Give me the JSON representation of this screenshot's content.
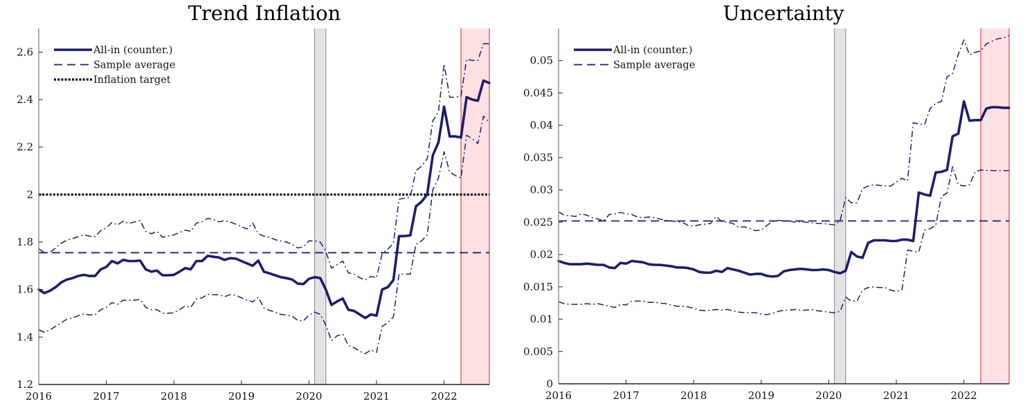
{
  "chart_data": [
    {
      "type": "line",
      "title": "Trend Inflation",
      "xlabel": "",
      "ylabel": "",
      "x_start": "2016-01",
      "frequency": "monthly",
      "xlim": [
        2016.0,
        2022.67
      ],
      "ylim": [
        1.2,
        2.7
      ],
      "x_ticks": [
        "2016",
        "2017",
        "2018",
        "2019",
        "2020",
        "2021",
        "2022"
      ],
      "y_ticks": [
        "1.2",
        "1.4",
        "1.6",
        "1.8",
        "2",
        "2.2",
        "2.4",
        "2.6"
      ],
      "y_tick_values": [
        1.2,
        1.4,
        1.6,
        1.8,
        2.0,
        2.2,
        2.4,
        2.6
      ],
      "grid": false,
      "legend_position": "top-left",
      "legend": [
        {
          "label": "All-in (counter.)",
          "style": "solid"
        },
        {
          "label": "Sample average",
          "style": "dashed"
        },
        {
          "label": "Inflation target",
          "style": "dotted"
        }
      ],
      "shaded_regions": [
        {
          "name": "covid",
          "from": 2020.083,
          "to": 2020.25,
          "color": "#e3e3e3",
          "edge": "#9a9a9a"
        },
        {
          "name": "forecast",
          "from": 2022.25,
          "to": 2022.67,
          "color": "#ffe1e4",
          "edge": "#e0505a"
        }
      ],
      "hlines": [
        {
          "name": "Sample average",
          "value": 1.755,
          "style": "dashed",
          "color": "#1c1c6e"
        },
        {
          "name": "Inflation target",
          "value": 2.0,
          "style": "dotted",
          "color": "#000000"
        }
      ],
      "series": [
        {
          "name": "All-in (counter.)",
          "style": "solid",
          "color": "#1c1c6e",
          "values": [
            1.6,
            1.585,
            1.595,
            1.61,
            1.63,
            1.642,
            1.648,
            1.657,
            1.662,
            1.657,
            1.657,
            1.685,
            1.695,
            1.72,
            1.71,
            1.725,
            1.72,
            1.72,
            1.722,
            1.685,
            1.675,
            1.68,
            1.66,
            1.66,
            1.662,
            1.675,
            1.69,
            1.685,
            1.72,
            1.72,
            1.742,
            1.738,
            1.735,
            1.725,
            1.732,
            1.73,
            1.72,
            1.71,
            1.7,
            1.722,
            1.675,
            1.668,
            1.66,
            1.652,
            1.648,
            1.642,
            1.625,
            1.623,
            1.645,
            1.652,
            1.648,
            1.6,
            1.535,
            1.55,
            1.562,
            1.515,
            1.51,
            1.495,
            1.48,
            1.495,
            1.49,
            1.6,
            1.61,
            1.64,
            1.825,
            1.825,
            1.828,
            1.95,
            1.97,
            2.0,
            2.165,
            2.22,
            2.37,
            2.245,
            2.245,
            2.24,
            2.41,
            2.4,
            2.395,
            2.48,
            2.47
          ]
        },
        {
          "name": "Upper band",
          "style": "dashdot",
          "color": "#1c1c6e",
          "values": [
            1.772,
            1.755,
            1.757,
            1.775,
            1.795,
            1.808,
            1.815,
            1.822,
            1.83,
            1.825,
            1.822,
            1.848,
            1.86,
            1.882,
            1.872,
            1.888,
            1.878,
            1.885,
            1.89,
            1.845,
            1.835,
            1.845,
            1.82,
            1.825,
            1.83,
            1.84,
            1.85,
            1.845,
            1.88,
            1.885,
            1.9,
            1.895,
            1.885,
            1.89,
            1.885,
            1.875,
            1.865,
            1.855,
            1.88,
            1.835,
            1.825,
            1.82,
            1.81,
            1.805,
            1.8,
            1.79,
            1.775,
            1.78,
            1.805,
            1.805,
            1.8,
            1.76,
            1.69,
            1.705,
            1.72,
            1.67,
            1.665,
            1.65,
            1.64,
            1.655,
            1.65,
            1.75,
            1.77,
            1.795,
            1.98,
            1.985,
            1.99,
            2.1,
            2.12,
            2.15,
            2.31,
            2.35,
            2.55,
            2.41,
            2.41,
            2.415,
            2.57,
            2.565,
            2.565,
            2.635,
            2.635
          ]
        },
        {
          "name": "Lower band",
          "style": "dashdot",
          "color": "#1c1c6e",
          "values": [
            1.43,
            1.42,
            1.43,
            1.445,
            1.46,
            1.475,
            1.48,
            1.49,
            1.497,
            1.493,
            1.493,
            1.515,
            1.525,
            1.545,
            1.538,
            1.555,
            1.555,
            1.555,
            1.558,
            1.525,
            1.515,
            1.515,
            1.5,
            1.5,
            1.502,
            1.515,
            1.53,
            1.525,
            1.56,
            1.565,
            1.58,
            1.578,
            1.578,
            1.57,
            1.578,
            1.576,
            1.565,
            1.555,
            1.548,
            1.568,
            1.522,
            1.512,
            1.505,
            1.495,
            1.492,
            1.488,
            1.47,
            1.468,
            1.492,
            1.505,
            1.495,
            1.45,
            1.385,
            1.405,
            1.412,
            1.365,
            1.355,
            1.34,
            1.33,
            1.345,
            1.335,
            1.445,
            1.46,
            1.485,
            1.665,
            1.665,
            1.665,
            1.79,
            1.805,
            1.83,
            2.02,
            2.07,
            2.18,
            2.095,
            2.08,
            2.07,
            2.25,
            2.235,
            2.215,
            2.33,
            2.305
          ]
        }
      ]
    },
    {
      "type": "line",
      "title": "Uncertainty",
      "xlabel": "",
      "ylabel": "",
      "x_start": "2016-01",
      "frequency": "monthly",
      "xlim": [
        2016.0,
        2022.67
      ],
      "ylim": [
        0,
        0.055
      ],
      "x_ticks": [
        "2016",
        "2017",
        "2018",
        "2019",
        "2020",
        "2021",
        "2022"
      ],
      "y_ticks": [
        "0",
        "0.005",
        "0.01",
        "0.015",
        "0.02",
        "0.025",
        "0.03",
        "0.035",
        "0.04",
        "0.045",
        "0.05"
      ],
      "y_tick_values": [
        0,
        0.005,
        0.01,
        0.015,
        0.02,
        0.025,
        0.03,
        0.035,
        0.04,
        0.045,
        0.05
      ],
      "grid": false,
      "legend_position": "top-left",
      "legend": [
        {
          "label": "All-in (counter.)",
          "style": "solid"
        },
        {
          "label": "Sample average",
          "style": "dashed"
        }
      ],
      "shaded_regions": [
        {
          "name": "covid",
          "from": 2020.083,
          "to": 2020.25,
          "color": "#e3e3e3",
          "edge": "#9a9a9a"
        },
        {
          "name": "forecast",
          "from": 2022.25,
          "to": 2022.67,
          "color": "#ffe1e4",
          "edge": "#e0505a"
        }
      ],
      "hlines": [
        {
          "name": "Sample average",
          "value": 0.0252,
          "style": "dashed",
          "color": "#1c1c6e"
        }
      ],
      "series": [
        {
          "name": "All-in (counter.)",
          "style": "solid",
          "color": "#1c1c6e",
          "values": [
            0.019,
            0.0187,
            0.0185,
            0.0185,
            0.0185,
            0.0186,
            0.0185,
            0.0184,
            0.0184,
            0.018,
            0.0179,
            0.0187,
            0.0186,
            0.019,
            0.0189,
            0.0188,
            0.0185,
            0.0184,
            0.0184,
            0.0183,
            0.0182,
            0.018,
            0.018,
            0.0179,
            0.0177,
            0.0173,
            0.0172,
            0.0172,
            0.0175,
            0.0173,
            0.0179,
            0.0177,
            0.0175,
            0.0172,
            0.0169,
            0.017,
            0.017,
            0.0167,
            0.0166,
            0.0167,
            0.0174,
            0.0176,
            0.0177,
            0.0178,
            0.0177,
            0.0176,
            0.0176,
            0.0177,
            0.0176,
            0.0173,
            0.0171,
            0.0175,
            0.0204,
            0.0197,
            0.0195,
            0.0218,
            0.0222,
            0.0222,
            0.0222,
            0.0221,
            0.0221,
            0.0223,
            0.0223,
            0.0221,
            0.0296,
            0.0293,
            0.0291,
            0.0327,
            0.0328,
            0.0331,
            0.0383,
            0.0387,
            0.0437,
            0.0407,
            0.0408,
            0.0408,
            0.0426,
            0.0428,
            0.0428,
            0.0427,
            0.0427
          ]
        },
        {
          "name": "Upper band",
          "style": "dashdot",
          "color": "#1c1c6e",
          "values": [
            0.0266,
            0.0261,
            0.026,
            0.0259,
            0.0263,
            0.0261,
            0.0257,
            0.0255,
            0.0252,
            0.0262,
            0.0263,
            0.0265,
            0.0263,
            0.0262,
            0.0258,
            0.0257,
            0.0258,
            0.0257,
            0.0255,
            0.0253,
            0.0252,
            0.0251,
            0.025,
            0.0245,
            0.0244,
            0.0246,
            0.0247,
            0.0248,
            0.0259,
            0.0251,
            0.025,
            0.0248,
            0.0242,
            0.0243,
            0.024,
            0.0237,
            0.0238,
            0.0245,
            0.0251,
            0.0253,
            0.0252,
            0.0252,
            0.025,
            0.0251,
            0.025,
            0.0249,
            0.0248,
            0.0248,
            0.0247,
            0.0246,
            0.0252,
            0.0288,
            0.028,
            0.028,
            0.0302,
            0.0306,
            0.0308,
            0.0307,
            0.0306,
            0.0306,
            0.0312,
            0.0318,
            0.0314,
            0.0404,
            0.0402,
            0.0401,
            0.0426,
            0.0434,
            0.0437,
            0.0475,
            0.048,
            0.051,
            0.0532,
            0.0509,
            0.0513,
            0.0515,
            0.0526,
            0.053,
            0.0534,
            0.0535,
            0.0539
          ]
        },
        {
          "name": "Lower band",
          "style": "dashdot",
          "color": "#1c1c6e",
          "values": [
            0.0127,
            0.0124,
            0.0123,
            0.0123,
            0.0123,
            0.0124,
            0.0123,
            0.0124,
            0.0122,
            0.012,
            0.0118,
            0.0123,
            0.0122,
            0.0128,
            0.0128,
            0.0128,
            0.0126,
            0.0126,
            0.0125,
            0.0124,
            0.0122,
            0.012,
            0.012,
            0.0119,
            0.0117,
            0.0114,
            0.0113,
            0.0114,
            0.0115,
            0.0114,
            0.0115,
            0.0113,
            0.0111,
            0.011,
            0.011,
            0.011,
            0.0108,
            0.0107,
            0.0109,
            0.0112,
            0.0114,
            0.0114,
            0.0115,
            0.0114,
            0.0114,
            0.0115,
            0.0113,
            0.0112,
            0.0111,
            0.011,
            0.0112,
            0.0134,
            0.0128,
            0.0128,
            0.0145,
            0.0149,
            0.015,
            0.0149,
            0.0149,
            0.0145,
            0.0143,
            0.0145,
            0.0207,
            0.0205,
            0.0204,
            0.0238,
            0.024,
            0.0245,
            0.029,
            0.0295,
            0.0336,
            0.0308,
            0.0306,
            0.0308,
            0.0328,
            0.0331,
            0.033,
            0.033,
            0.033,
            0.033,
            0.033
          ]
        }
      ]
    }
  ]
}
